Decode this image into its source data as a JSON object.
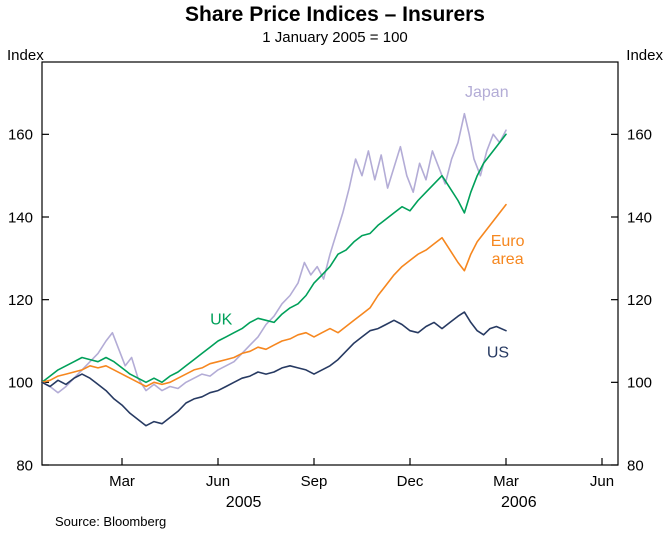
{
  "title": "Share Price Indices – Insurers",
  "subtitle": "1 January 2005 = 100",
  "y_axis_label_left": "Index",
  "y_axis_label_right": "Index",
  "source": "Source: Bloomberg",
  "chart_data": {
    "type": "line",
    "title": "Share Price Indices – Insurers",
    "subtitle": "1 January 2005 = 100",
    "ylabel": "Index",
    "xlabel": "",
    "grid": false,
    "legend_position": "in-plot-labels",
    "x_unit": "months since 1 January 2005",
    "x_range": [
      0,
      18
    ],
    "y_range": [
      80,
      177.5
    ],
    "y_ticks": [
      80,
      100,
      120,
      140,
      160
    ],
    "x_ticks": [
      {
        "pos": 2.5,
        "label": "Mar"
      },
      {
        "pos": 5.5,
        "label": "Jun"
      },
      {
        "pos": 8.5,
        "label": "Sep"
      },
      {
        "pos": 11.5,
        "label": "Dec"
      },
      {
        "pos": 14.5,
        "label": "Mar"
      },
      {
        "pos": 17.5,
        "label": "Jun"
      }
    ],
    "year_labels": [
      {
        "pos": 6.3,
        "label": "2005"
      },
      {
        "pos": 14.9,
        "label": "2006"
      }
    ],
    "series": [
      {
        "name": "Japan",
        "color": "#b3acd6",
        "label": {
          "lines": [
            "Japan"
          ],
          "x": 13.9,
          "y": 169
        },
        "points": [
          [
            0,
            100
          ],
          [
            0.25,
            99
          ],
          [
            0.5,
            97.5
          ],
          [
            0.75,
            99
          ],
          [
            1,
            101
          ],
          [
            1.25,
            103
          ],
          [
            1.5,
            105
          ],
          [
            1.75,
            107
          ],
          [
            2,
            110
          ],
          [
            2.2,
            112
          ],
          [
            2.4,
            108
          ],
          [
            2.6,
            104
          ],
          [
            2.8,
            106
          ],
          [
            3,
            101
          ],
          [
            3.25,
            98
          ],
          [
            3.5,
            99.5
          ],
          [
            3.75,
            98
          ],
          [
            4,
            99
          ],
          [
            4.25,
            98.5
          ],
          [
            4.5,
            100
          ],
          [
            4.75,
            101
          ],
          [
            5,
            102
          ],
          [
            5.25,
            101.5
          ],
          [
            5.5,
            103
          ],
          [
            5.75,
            104
          ],
          [
            6,
            105
          ],
          [
            6.25,
            107
          ],
          [
            6.5,
            109
          ],
          [
            6.75,
            111
          ],
          [
            7,
            114
          ],
          [
            7.25,
            116
          ],
          [
            7.5,
            119
          ],
          [
            7.75,
            121
          ],
          [
            8,
            124
          ],
          [
            8.2,
            129
          ],
          [
            8.4,
            126
          ],
          [
            8.6,
            128
          ],
          [
            8.8,
            125
          ],
          [
            9,
            131
          ],
          [
            9.2,
            136
          ],
          [
            9.4,
            141
          ],
          [
            9.6,
            147
          ],
          [
            9.8,
            154
          ],
          [
            10,
            150
          ],
          [
            10.2,
            156
          ],
          [
            10.4,
            149
          ],
          [
            10.6,
            155
          ],
          [
            10.8,
            147
          ],
          [
            11,
            152
          ],
          [
            11.2,
            157
          ],
          [
            11.4,
            150
          ],
          [
            11.6,
            146
          ],
          [
            11.8,
            153
          ],
          [
            12,
            149
          ],
          [
            12.2,
            156
          ],
          [
            12.4,
            152
          ],
          [
            12.6,
            148
          ],
          [
            12.8,
            154
          ],
          [
            13,
            158
          ],
          [
            13.2,
            165
          ],
          [
            13.35,
            160
          ],
          [
            13.5,
            154
          ],
          [
            13.7,
            150
          ],
          [
            13.9,
            156
          ],
          [
            14.1,
            160
          ],
          [
            14.3,
            158
          ],
          [
            14.5,
            161
          ]
        ]
      },
      {
        "name": "UK",
        "color": "#00a05a",
        "label": {
          "lines": [
            "UK"
          ],
          "x": 5.6,
          "y": 114
        },
        "points": [
          [
            0,
            100
          ],
          [
            0.25,
            101.5
          ],
          [
            0.5,
            103
          ],
          [
            0.75,
            104
          ],
          [
            1,
            105
          ],
          [
            1.25,
            106
          ],
          [
            1.5,
            105.5
          ],
          [
            1.75,
            105
          ],
          [
            2,
            106
          ],
          [
            2.25,
            105
          ],
          [
            2.5,
            103.5
          ],
          [
            2.75,
            102
          ],
          [
            3,
            101
          ],
          [
            3.25,
            100
          ],
          [
            3.5,
            101
          ],
          [
            3.75,
            100
          ],
          [
            4,
            101.5
          ],
          [
            4.25,
            102.5
          ],
          [
            4.5,
            104
          ],
          [
            4.75,
            105.5
          ],
          [
            5,
            107
          ],
          [
            5.25,
            108.5
          ],
          [
            5.5,
            110
          ],
          [
            5.75,
            111
          ],
          [
            6,
            112
          ],
          [
            6.25,
            113
          ],
          [
            6.5,
            114.5
          ],
          [
            6.75,
            115.5
          ],
          [
            7,
            115
          ],
          [
            7.25,
            114.5
          ],
          [
            7.5,
            116.5
          ],
          [
            7.75,
            118
          ],
          [
            8,
            119
          ],
          [
            8.25,
            121
          ],
          [
            8.5,
            124
          ],
          [
            8.75,
            126
          ],
          [
            9,
            128
          ],
          [
            9.25,
            131
          ],
          [
            9.5,
            132
          ],
          [
            9.75,
            134
          ],
          [
            10,
            135.5
          ],
          [
            10.25,
            136
          ],
          [
            10.5,
            138
          ],
          [
            10.75,
            139.5
          ],
          [
            11,
            141
          ],
          [
            11.25,
            142.5
          ],
          [
            11.5,
            141.5
          ],
          [
            11.75,
            144
          ],
          [
            12,
            146
          ],
          [
            12.25,
            148
          ],
          [
            12.5,
            150
          ],
          [
            12.75,
            147
          ],
          [
            13,
            144
          ],
          [
            13.2,
            141
          ],
          [
            13.4,
            146
          ],
          [
            13.6,
            150
          ],
          [
            13.8,
            153
          ],
          [
            14,
            155
          ],
          [
            14.2,
            157
          ],
          [
            14.5,
            160
          ]
        ]
      },
      {
        "name": "Euro area",
        "color": "#f6871f",
        "label": {
          "lines": [
            "Euro",
            "area"
          ],
          "x": 14.55,
          "y": 133
        },
        "points": [
          [
            0,
            100
          ],
          [
            0.25,
            100.5
          ],
          [
            0.5,
            101.5
          ],
          [
            0.75,
            102
          ],
          [
            1,
            102.5
          ],
          [
            1.25,
            103
          ],
          [
            1.5,
            104
          ],
          [
            1.75,
            103.5
          ],
          [
            2,
            104
          ],
          [
            2.25,
            103
          ],
          [
            2.5,
            102
          ],
          [
            2.75,
            101
          ],
          [
            3,
            100
          ],
          [
            3.25,
            99
          ],
          [
            3.5,
            100
          ],
          [
            3.75,
            99.5
          ],
          [
            4,
            100
          ],
          [
            4.25,
            101
          ],
          [
            4.5,
            102
          ],
          [
            4.75,
            103
          ],
          [
            5,
            103.5
          ],
          [
            5.25,
            104.5
          ],
          [
            5.5,
            105
          ],
          [
            5.75,
            105.5
          ],
          [
            6,
            106
          ],
          [
            6.25,
            107
          ],
          [
            6.5,
            107.5
          ],
          [
            6.75,
            108.5
          ],
          [
            7,
            108
          ],
          [
            7.25,
            109
          ],
          [
            7.5,
            110
          ],
          [
            7.75,
            110.5
          ],
          [
            8,
            111.5
          ],
          [
            8.25,
            112
          ],
          [
            8.5,
            111
          ],
          [
            8.75,
            112
          ],
          [
            9,
            113
          ],
          [
            9.25,
            112
          ],
          [
            9.5,
            113.5
          ],
          [
            9.75,
            115
          ],
          [
            10,
            116.5
          ],
          [
            10.25,
            118
          ],
          [
            10.5,
            121
          ],
          [
            10.75,
            123.5
          ],
          [
            11,
            126
          ],
          [
            11.25,
            128
          ],
          [
            11.5,
            129.5
          ],
          [
            11.75,
            131
          ],
          [
            12,
            132
          ],
          [
            12.25,
            133.5
          ],
          [
            12.5,
            135
          ],
          [
            12.75,
            132
          ],
          [
            13,
            129
          ],
          [
            13.2,
            127
          ],
          [
            13.4,
            131
          ],
          [
            13.6,
            134
          ],
          [
            13.8,
            136
          ],
          [
            14,
            138
          ],
          [
            14.2,
            140
          ],
          [
            14.5,
            143
          ]
        ]
      },
      {
        "name": "US",
        "color": "#273a62",
        "label": {
          "lines": [
            "US"
          ],
          "x": 14.25,
          "y": 106
        },
        "points": [
          [
            0,
            100
          ],
          [
            0.25,
            99
          ],
          [
            0.5,
            100.5
          ],
          [
            0.75,
            99.5
          ],
          [
            1,
            101
          ],
          [
            1.25,
            102
          ],
          [
            1.5,
            101
          ],
          [
            1.75,
            99.5
          ],
          [
            2,
            98
          ],
          [
            2.25,
            96
          ],
          [
            2.5,
            94.5
          ],
          [
            2.75,
            92.5
          ],
          [
            3,
            91
          ],
          [
            3.25,
            89.5
          ],
          [
            3.5,
            90.5
          ],
          [
            3.75,
            90
          ],
          [
            4,
            91.5
          ],
          [
            4.25,
            93
          ],
          [
            4.5,
            95
          ],
          [
            4.75,
            96
          ],
          [
            5,
            96.5
          ],
          [
            5.25,
            97.5
          ],
          [
            5.5,
            98
          ],
          [
            5.75,
            99
          ],
          [
            6,
            100
          ],
          [
            6.25,
            101
          ],
          [
            6.5,
            101.5
          ],
          [
            6.75,
            102.5
          ],
          [
            7,
            102
          ],
          [
            7.25,
            102.5
          ],
          [
            7.5,
            103.5
          ],
          [
            7.75,
            104
          ],
          [
            8,
            103.5
          ],
          [
            8.25,
            103
          ],
          [
            8.5,
            102
          ],
          [
            8.75,
            103
          ],
          [
            9,
            104
          ],
          [
            9.25,
            105.5
          ],
          [
            9.5,
            107.5
          ],
          [
            9.75,
            109.5
          ],
          [
            10,
            111
          ],
          [
            10.25,
            112.5
          ],
          [
            10.5,
            113
          ],
          [
            10.75,
            114
          ],
          [
            11,
            115
          ],
          [
            11.25,
            114
          ],
          [
            11.5,
            112.5
          ],
          [
            11.75,
            112
          ],
          [
            12,
            113.5
          ],
          [
            12.25,
            114.5
          ],
          [
            12.5,
            113
          ],
          [
            12.75,
            114.5
          ],
          [
            13,
            116
          ],
          [
            13.2,
            117
          ],
          [
            13.4,
            114.5
          ],
          [
            13.6,
            112.5
          ],
          [
            13.8,
            111.5
          ],
          [
            14,
            113
          ],
          [
            14.2,
            113.5
          ],
          [
            14.5,
            112.5
          ]
        ]
      }
    ]
  }
}
